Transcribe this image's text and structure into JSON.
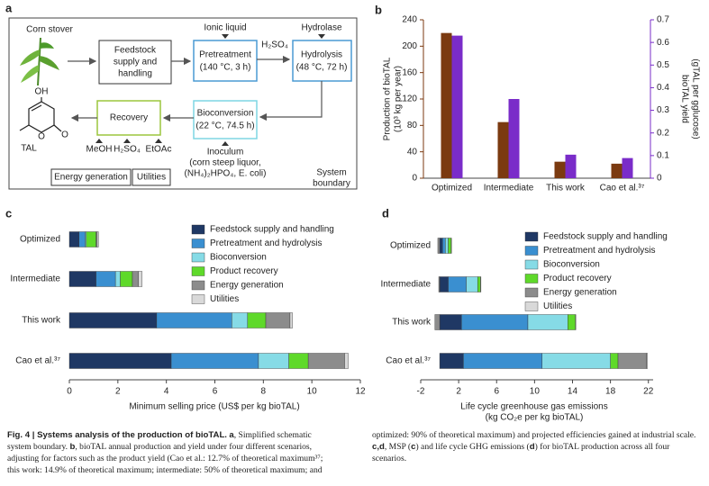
{
  "panel_labels": [
    "a",
    "b",
    "c",
    "d"
  ],
  "diagram": {
    "corn_stover": "Corn stover",
    "feedstock": [
      "Feedstock",
      "supply and",
      "handling"
    ],
    "ionic_liquid": "Ionic liquid",
    "pretreatment": [
      "Pretreatment",
      "(140 °C, 3 h)"
    ],
    "hydrolase": "Hydrolase",
    "h2so4_top": "H₂SO₄",
    "hydrolysis": [
      "Hydrolysis",
      "(48 °C, 72 h)"
    ],
    "bioconversion": [
      "Bioconversion",
      "(22 °C, 74.5 h)"
    ],
    "inoculum": [
      "Inoculum",
      "(corn steep liquor,",
      "(NH₄)₂HPO₄, E. coli)"
    ],
    "recovery": "Recovery",
    "recovery_inputs": [
      "MeOH",
      "H₂SO₄",
      "EtOAc"
    ],
    "molecule": {
      "oh": "OH",
      "o1": "O",
      "o2": "O",
      "name": "TAL"
    },
    "legend": [
      "Energy generation",
      "Utilities"
    ],
    "system_boundary": [
      "System",
      "boundary"
    ]
  },
  "chart_data": [
    {
      "type": "bar",
      "categories": [
        "Optimized",
        "Intermediate",
        "This work",
        "Cao et al.³⁷"
      ],
      "series": [
        {
          "name": "Production of bioTAL",
          "color": "#7b3a10",
          "values": [
            220,
            85,
            25,
            22
          ]
        },
        {
          "name": "bioTAL yield",
          "color": "#7a2cc9",
          "axis": "y2",
          "values": [
            0.63,
            0.35,
            0.104,
            0.089
          ]
        }
      ],
      "ylabel": [
        "Production of bioTAL",
        "(10³ kg per year)"
      ],
      "y2label": [
        "bioTAL yield",
        "(gTAL per gglucose)"
      ],
      "ylim": [
        0,
        240
      ],
      "yticks": [
        0,
        40,
        80,
        120,
        160,
        200,
        240
      ],
      "y2lim": [
        0,
        0.7
      ],
      "y2ticks": [
        0,
        0.1,
        0.2,
        0.3,
        0.4,
        0.5,
        0.6,
        0.7
      ]
    },
    {
      "type": "barh",
      "stacked": true,
      "categories": [
        "Optimized",
        "Intermediate",
        "This work",
        "Cao et al.³⁷"
      ],
      "series": [
        {
          "name": "Feedstock supply and handling",
          "color": "#1f3864",
          "values": [
            0.4,
            1.1,
            3.6,
            4.2
          ]
        },
        {
          "name": "Pretreatment and hydrolysis",
          "color": "#3a8fd0",
          "values": [
            0.25,
            0.8,
            3.1,
            3.6
          ]
        },
        {
          "name": "Bioconversion",
          "color": "#86dbe6",
          "values": [
            0.05,
            0.2,
            0.65,
            1.25
          ]
        },
        {
          "name": "Product recovery",
          "color": "#5fd92a",
          "values": [
            0.4,
            0.5,
            0.75,
            0.8
          ]
        },
        {
          "name": "Energy generation",
          "color": "#8c8c8c",
          "values": [
            0.05,
            0.25,
            1.0,
            1.5
          ]
        },
        {
          "name": "Utilities",
          "color": "#d9d9d9",
          "values": [
            0.05,
            0.15,
            0.1,
            0.15
          ]
        }
      ],
      "xlabel": [
        "Minimum selling price (US$ per kg bioTAL)"
      ],
      "xlim": [
        0,
        12
      ],
      "xticks": [
        0,
        2,
        4,
        6,
        8,
        10,
        12
      ],
      "legend": "upper right"
    },
    {
      "type": "barh",
      "stacked": true,
      "categories": [
        "Optimized",
        "Intermediate",
        "This work",
        "Cao et al.³⁷"
      ],
      "series": [
        {
          "name": "Feedstock supply and handling",
          "color": "#1f3864",
          "values": [
            0.3,
            0.9,
            2.3,
            2.5
          ]
        },
        {
          "name": "Pretreatment and hydrolysis",
          "color": "#3a8fd0",
          "values": [
            0.3,
            1.9,
            7.0,
            8.3
          ]
        },
        {
          "name": "Bioconversion",
          "color": "#86dbe6",
          "values": [
            0.3,
            1.2,
            4.2,
            7.2
          ]
        },
        {
          "name": "Product recovery",
          "color": "#5fd92a",
          "values": [
            0.3,
            0.3,
            0.8,
            0.8
          ]
        },
        {
          "name": "Energy generation",
          "color": "#8c8c8c",
          "values": [
            -0.2,
            -0.1,
            -0.5,
            3.0
          ]
        },
        {
          "name": "Utilities",
          "color": "#d9d9d9",
          "values": [
            0.05,
            0.05,
            0.05,
            0.1
          ]
        }
      ],
      "xlabel": [
        "Life cycle greenhouse gas emissions",
        "(kg CO₂e per kg bioTAL)"
      ],
      "xlim": [
        -2,
        22.5
      ],
      "xticks": [
        -2,
        2,
        6,
        10,
        14,
        18,
        22
      ],
      "legend": "upper right"
    }
  ],
  "caption": [
    "Fig. 4 | Systems analysis of the production of bioTAL.",
    " ",
    "a",
    ", Simplified schematic system boundary. ",
    "b",
    ", bioTAL annual production and yield under four different scenarios, adjusting for factors such as the product yield (Cao et al.: 12.7% of theoretical maximum³⁷; this work: 14.9% of theoretical maximum; intermediate: 50% of theoretical maximum; and optimized: 90% of theoretical maximum) and projected efficiencies gained at industrial scale. ",
    "c,d",
    ", MSP (",
    "c",
    ") and life cycle GHG emissions (",
    "d",
    ") for bioTAL production across all four scenarios."
  ]
}
